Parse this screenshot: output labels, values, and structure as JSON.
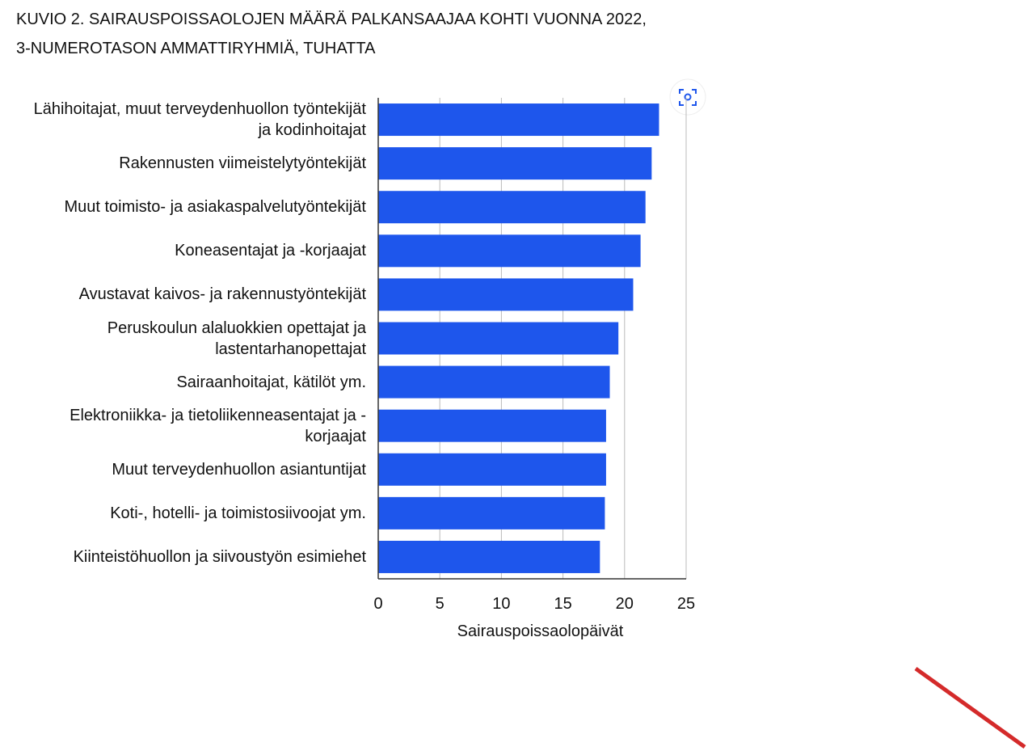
{
  "chart_data": {
    "type": "bar",
    "orientation": "horizontal",
    "title": "KUVIO 2. SAIRAUSPOISSAOLOJEN MÄÄRÄ PALKANSAAJAA KOHTI VUONNA 2022, 3-NUMEROTASON AMMATTIRYHMIÄ, TUHATTA",
    "categories": [
      "Lähihoitajat, muut terveydenhuollon työntekijät ja kodinhoitajat",
      "Rakennusten viimeistelytyöntekijät",
      "Muut toimisto- ja asiakaspalvelutyöntekijät",
      "Koneasentajat ja -korjaajat",
      "Avustavat kaivos- ja rakennustyöntekijät",
      "Peruskoulun alaluokkien opettajat ja lastentarhanopettajat",
      "Sairaanhoitajat, kätilöt ym.",
      "Elektroniikka- ja tietoliikenneasentajat ja -korjaajat",
      "Muut terveydenhuollon asiantuntijat",
      "Koti-, hotelli- ja toimistosiivoojat ym.",
      "Kiinteistöhuollon ja siivoustyön esimiehet"
    ],
    "values": [
      22.8,
      22.2,
      21.7,
      21.3,
      20.7,
      19.5,
      18.8,
      18.5,
      18.5,
      18.4,
      18.0
    ],
    "color": "#1e56ec",
    "xlabel": "Sairauspoissaolopäivät",
    "xlim": [
      0,
      25
    ],
    "xticks": [
      0,
      5,
      10,
      15,
      20,
      25
    ],
    "grid": true
  }
}
